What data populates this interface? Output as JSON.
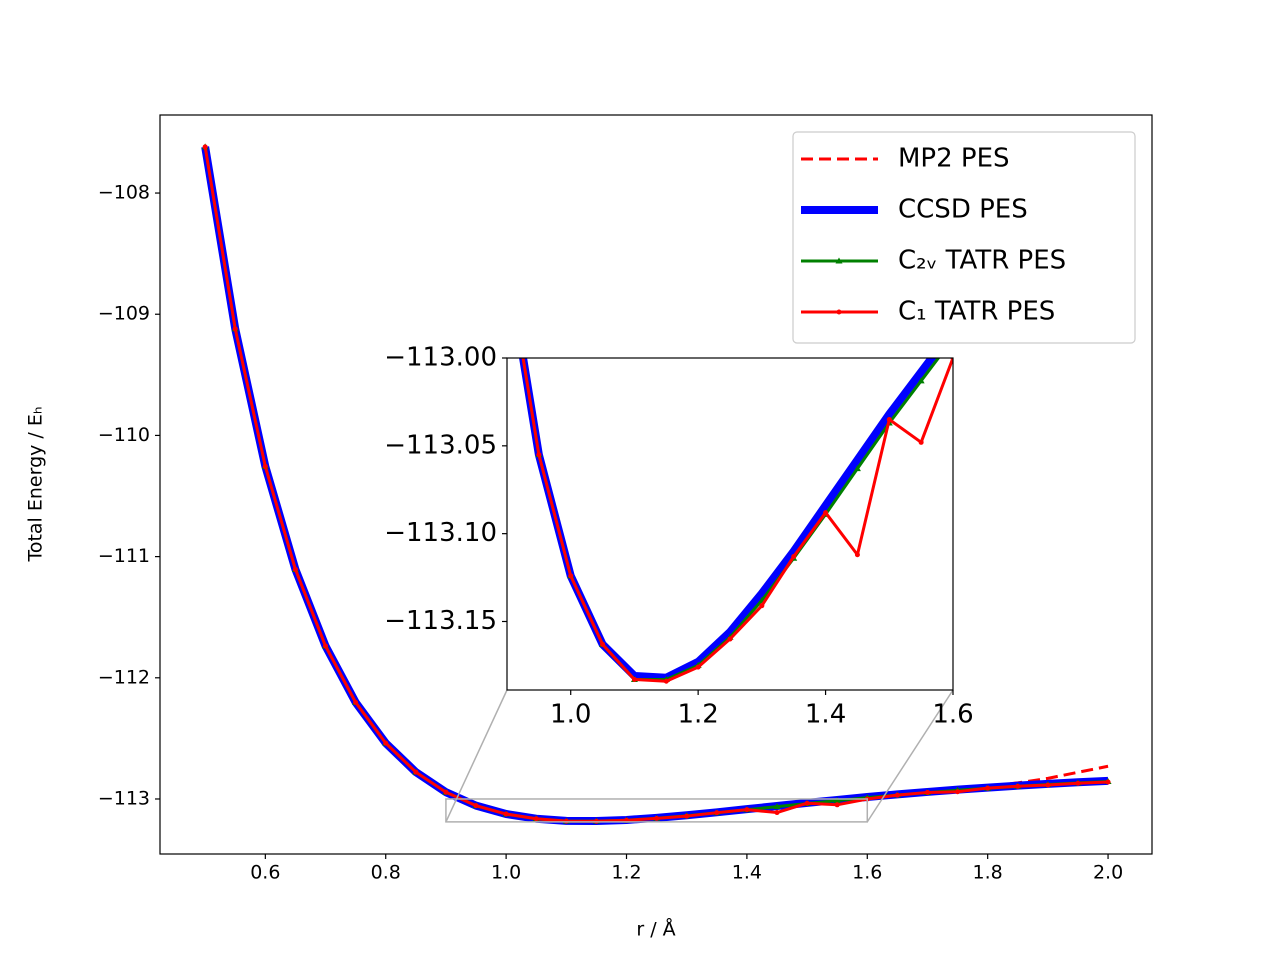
{
  "chart_data": {
    "type": "line",
    "xlabel": "r / Å",
    "ylabel": "Total Energy / Eₕ",
    "x": [
      0.5,
      0.55,
      0.6,
      0.65,
      0.7,
      0.75,
      0.8,
      0.85,
      0.9,
      0.95,
      1.0,
      1.05,
      1.1,
      1.15,
      1.2,
      1.25,
      1.3,
      1.35,
      1.4,
      1.45,
      1.5,
      1.55,
      1.6,
      1.65,
      1.7,
      1.75,
      1.8,
      1.85,
      1.9,
      1.95,
      2.0
    ],
    "series": [
      {
        "name": "MP2 PES",
        "color": "#ff0000",
        "linewidth": 3,
        "dash": true,
        "marker": "none",
        "values": [
          -107.619,
          -109.121,
          -110.256,
          -111.106,
          -111.738,
          -112.203,
          -112.539,
          -112.778,
          -112.944,
          -113.055,
          -113.124,
          -113.163,
          -113.181,
          -113.182,
          -113.173,
          -113.156,
          -113.134,
          -113.11,
          -113.084,
          -113.058,
          -113.032,
          -113.008,
          -112.984,
          -112.962,
          -112.942,
          -112.922,
          -112.895,
          -112.867,
          -112.83,
          -112.78,
          -112.73
        ]
      },
      {
        "name": "CCSD PES",
        "color": "#0000ff",
        "linewidth": 8,
        "dash": false,
        "marker": "none",
        "values": [
          -107.619,
          -109.121,
          -110.256,
          -111.106,
          -111.738,
          -112.203,
          -112.539,
          -112.778,
          -112.944,
          -113.055,
          -113.124,
          -113.163,
          -113.181,
          -113.182,
          -113.173,
          -113.156,
          -113.134,
          -113.11,
          -113.084,
          -113.058,
          -113.032,
          -113.008,
          -112.984,
          -112.962,
          -112.942,
          -112.923,
          -112.906,
          -112.89,
          -112.875,
          -112.862,
          -112.851
        ]
      },
      {
        "name": "C₂ᵥ TATR PES",
        "color": "#008000",
        "linewidth": 3,
        "dash": false,
        "marker": "triangle",
        "values": [
          -107.619,
          -109.121,
          -110.256,
          -111.106,
          -111.738,
          -112.203,
          -112.539,
          -112.778,
          -112.944,
          -113.055,
          -113.124,
          -113.163,
          -113.183,
          -113.183,
          -113.175,
          -113.159,
          -113.138,
          -113.114,
          -113.089,
          -113.063,
          -113.037,
          -113.013,
          -112.989,
          -112.967,
          -112.947,
          -112.928,
          -112.911,
          -112.895,
          -112.88,
          -112.867,
          -112.856
        ]
      },
      {
        "name": "C₁ TATR PES",
        "color": "#ff0000",
        "linewidth": 3,
        "dash": false,
        "marker": "dot",
        "values": [
          -107.619,
          -109.121,
          -110.256,
          -111.106,
          -111.738,
          -112.203,
          -112.539,
          -112.778,
          -112.944,
          -113.055,
          -113.124,
          -113.163,
          -113.183,
          -113.184,
          -113.176,
          -113.16,
          -113.141,
          -113.113,
          -113.088,
          -113.112,
          -113.035,
          -113.048,
          -113.0,
          -112.968,
          -112.946,
          -112.94,
          -112.91,
          -112.895,
          -112.885,
          -112.87,
          -112.86
        ]
      }
    ],
    "xlim": [
      0.425,
      2.073
    ],
    "ylim": [
      -113.454,
      -107.356
    ],
    "xticks": [
      0.6,
      0.8,
      {
        "value": 1.0,
        "label": "1.0"
      },
      1.2,
      1.4,
      1.6,
      1.8,
      {
        "value": 2.0,
        "label": "2.0"
      }
    ],
    "yticks": [
      {
        "value": -113,
        "label": "−113"
      },
      {
        "value": -112,
        "label": "−112"
      },
      {
        "value": -111,
        "label": "−111"
      },
      {
        "value": -110,
        "label": "−110"
      },
      {
        "value": -109,
        "label": "−109"
      },
      {
        "value": -108,
        "label": "−108"
      }
    ],
    "legend": "upper right",
    "inset": {
      "xlim": [
        0.9,
        1.6
      ],
      "ylim": [
        -113.189,
        -113.0
      ],
      "xticks": [
        {
          "value": 1.0,
          "label": "1.0"
        },
        1.2,
        1.4,
        1.6
      ],
      "yticks": [
        {
          "value": -113.0,
          "label": "−113.00"
        },
        {
          "value": -113.05,
          "label": "−113.05"
        },
        {
          "value": -113.1,
          "label": "−113.10"
        },
        {
          "value": -113.15,
          "label": "−113.15"
        }
      ]
    }
  }
}
